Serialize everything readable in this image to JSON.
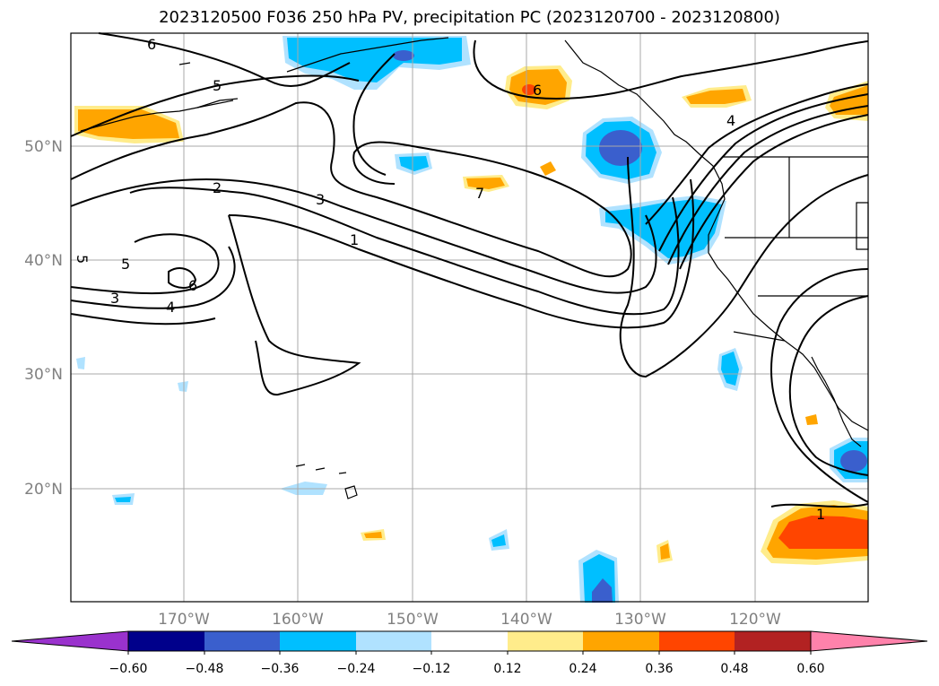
{
  "title": "2023120500 F036 250 hPa PV, precipitation PC (2023120700 - 2023120800)",
  "map": {
    "lat_labels": [
      "50°N",
      "40°N",
      "30°N",
      "20°N"
    ],
    "lon_labels": [
      "170°W",
      "160°W",
      "150°W",
      "140°W",
      "130°W",
      "120°W"
    ],
    "gridlines": true
  },
  "contour_labels": [
    "6",
    "5",
    "2",
    "3",
    "1",
    "5",
    "5",
    "6",
    "4",
    "3",
    "6",
    "7",
    "4",
    "1"
  ],
  "colorbar": {
    "ticks": [
      "−0.60",
      "−0.48",
      "−0.36",
      "−0.24",
      "−0.12",
      "0.12",
      "0.24",
      "0.36",
      "0.48",
      "0.60"
    ],
    "colors": [
      "#9a32cd",
      "#00008b",
      "#3a5fcd",
      "#00bfff",
      "#b0e2ff",
      "#ffffff",
      "#ffec8b",
      "#ffa500",
      "#ff4500",
      "#b22222",
      "#ff82ab"
    ]
  }
}
